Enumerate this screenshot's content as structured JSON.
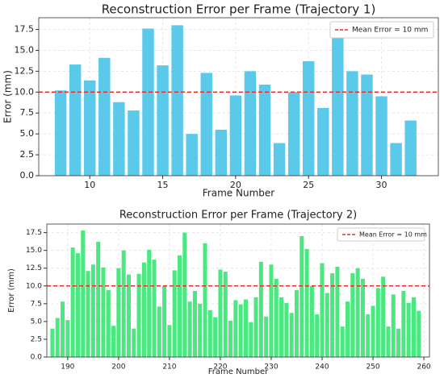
{
  "chart_data": [
    {
      "type": "bar",
      "title": "Reconstruction Error per Frame (Trajectory 1)",
      "xlabel": "Frame Number",
      "ylabel": "Error (mm)",
      "color": "#5bc9ea",
      "x": [
        8,
        9,
        10,
        11,
        12,
        13,
        14,
        15,
        16,
        17,
        18,
        19,
        20,
        21,
        22,
        23,
        24,
        25,
        26,
        27,
        28,
        29,
        30,
        31,
        32
      ],
      "values": [
        10.2,
        13.3,
        11.4,
        14.1,
        8.8,
        7.8,
        17.6,
        13.2,
        18.0,
        5.0,
        12.3,
        5.5,
        9.6,
        12.5,
        10.9,
        3.9,
        10.0,
        13.7,
        8.1,
        16.8,
        12.5,
        12.1,
        9.5,
        3.9,
        6.6
      ],
      "xlim": [
        6.5,
        33.9
      ],
      "xticks": [
        10,
        15,
        20,
        25,
        30
      ],
      "ylim": [
        0,
        18.9
      ],
      "yticks": [
        {
          "value": 0,
          "label": "0.0"
        },
        {
          "value": 2.5,
          "label": "2.5"
        },
        {
          "value": 5,
          "label": "5.0"
        },
        {
          "value": 7.5,
          "label": "7.5"
        },
        {
          "value": 10,
          "label": "10.0"
        },
        {
          "value": 12.5,
          "label": "12.5"
        },
        {
          "value": 15,
          "label": "15.0"
        },
        {
          "value": 17.5,
          "label": "17.5"
        }
      ],
      "hline": {
        "value": 10,
        "label": "Mean Error = 10 mm",
        "color": "#e03030"
      },
      "legend": "upper right",
      "grid": true
    },
    {
      "type": "bar",
      "title": "Reconstruction Error per Frame (Trajectory 2)",
      "xlabel": "Frame Number",
      "ylabel": "Error (mm)",
      "color": "#4be882",
      "x": [
        187,
        188,
        189,
        190,
        191,
        192,
        193,
        194,
        195,
        196,
        197,
        198,
        199,
        200,
        201,
        202,
        203,
        204,
        205,
        206,
        207,
        208,
        209,
        210,
        211,
        212,
        213,
        214,
        215,
        216,
        217,
        218,
        219,
        220,
        221,
        222,
        223,
        224,
        225,
        226,
        227,
        228,
        229,
        230,
        231,
        232,
        233,
        234,
        235,
        236,
        237,
        238,
        239,
        240,
        241,
        242,
        243,
        244,
        245,
        246,
        247,
        248,
        249,
        250,
        251,
        252,
        253,
        254,
        255,
        256,
        257,
        258,
        259
      ],
      "values": [
        4.0,
        5.5,
        7.8,
        5.2,
        15.4,
        14.6,
        17.8,
        12.1,
        13.0,
        16.2,
        12.6,
        9.4,
        4.4,
        12.5,
        15.0,
        11.6,
        4.0,
        11.7,
        13.3,
        15.1,
        13.7,
        7.1,
        10.0,
        4.5,
        12.2,
        14.3,
        17.5,
        7.8,
        9.3,
        7.5,
        16.0,
        6.6,
        5.6,
        12.3,
        12.0,
        5.1,
        8.0,
        7.4,
        8.1,
        4.9,
        8.4,
        13.4,
        5.7,
        13.0,
        11.0,
        8.4,
        7.6,
        6.2,
        9.4,
        17.0,
        15.2,
        10.0,
        6.0,
        13.2,
        9.0,
        11.8,
        12.7,
        4.3,
        7.8,
        11.8,
        12.5,
        11.0,
        6.0,
        7.2,
        9.7,
        11.3,
        4.3,
        8.8,
        4.0,
        9.3,
        7.6,
        8.4,
        6.5
      ],
      "xlim": [
        185.9,
        261.1
      ],
      "xticks": [
        190,
        200,
        210,
        220,
        230,
        240,
        250,
        260
      ],
      "ylim": [
        0,
        18.7
      ],
      "yticks": [
        {
          "value": 0,
          "label": "0.0"
        },
        {
          "value": 2.5,
          "label": "2.5"
        },
        {
          "value": 5,
          "label": "5.0"
        },
        {
          "value": 7.5,
          "label": "7.5"
        },
        {
          "value": 10,
          "label": "10.0"
        },
        {
          "value": 12.5,
          "label": "12.5"
        },
        {
          "value": 15,
          "label": "15.0"
        },
        {
          "value": 17.5,
          "label": "17.5"
        }
      ],
      "hline": {
        "value": 10,
        "label": "Mean Error = 10 mm",
        "color": "#e03030"
      },
      "legend": "upper right",
      "grid": true
    }
  ]
}
